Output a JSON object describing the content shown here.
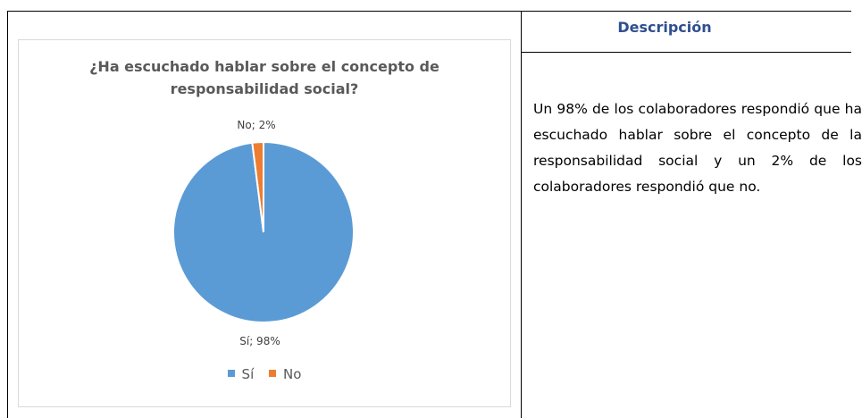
{
  "description": {
    "header": "Descripción",
    "text": "Un 98% de los colaboradores respondió que ha escuchado hablar sobre el concepto de la responsabilidad social y un 2% de los colaboradores respondió que no."
  },
  "chart_data": {
    "type": "pie",
    "title": "¿Ha escuchado hablar sobre el concepto de responsabilidad social?",
    "title_lines": [
      "¿Ha escuchado hablar sobre el concepto de",
      "responsabilidad social?"
    ],
    "categories": [
      "Sí",
      "No"
    ],
    "values": [
      98,
      2
    ],
    "data_labels": [
      "Sí; 98%",
      "No; 2%"
    ],
    "colors": [
      "#5b9bd5",
      "#ed7d31"
    ],
    "legend": {
      "position": "bottom",
      "entries": [
        "Sí",
        "No"
      ]
    }
  }
}
